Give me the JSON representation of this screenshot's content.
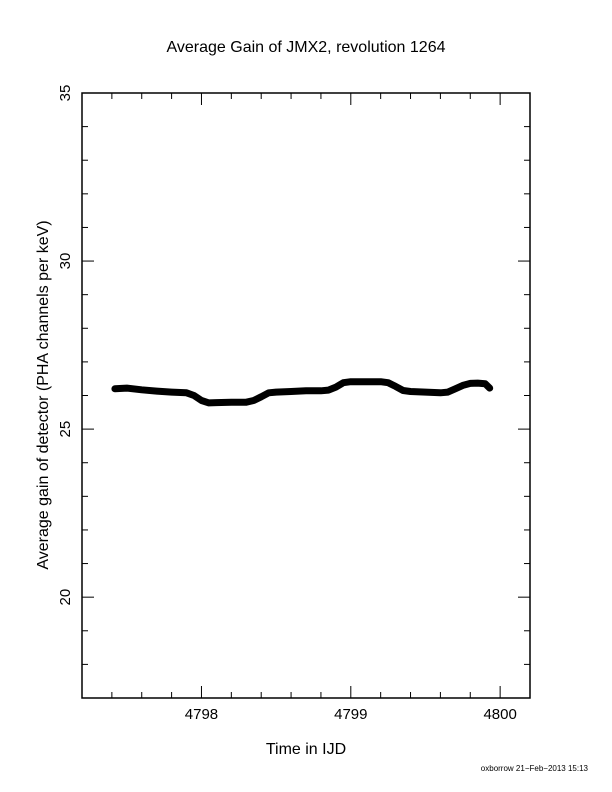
{
  "chart_data": {
    "type": "line",
    "title": "Average Gain of JMX2, revolution 1264",
    "xlabel": "Time in IJD",
    "ylabel": "Average gain of detector (PHA channels per keV)",
    "footer": "oxborrow 21−Feb−2013 15:13",
    "xlim": [
      4797.2,
      4800.2
    ],
    "ylim": [
      17,
      35
    ],
    "xticks": [
      4798,
      4799,
      4800
    ],
    "xtick_labels": [
      "4798",
      "4799",
      "4800"
    ],
    "yticks": [
      20,
      25,
      30,
      35
    ],
    "ytick_labels": [
      "20",
      "25",
      "30",
      "35"
    ],
    "grid": false,
    "series": [
      {
        "color": "#000000",
        "x": [
          4797.42,
          4797.5,
          4797.6,
          4797.7,
          4797.8,
          4797.9,
          4797.95,
          4798.0,
          4798.05,
          4798.1,
          4798.2,
          4798.3,
          4798.35,
          4798.4,
          4798.45,
          4798.5,
          4798.6,
          4798.7,
          4798.8,
          4798.85,
          4798.9,
          4798.95,
          4799.0,
          4799.1,
          4799.2,
          4799.25,
          4799.3,
          4799.35,
          4799.4,
          4799.5,
          4799.6,
          4799.65,
          4799.7,
          4799.75,
          4799.8,
          4799.85,
          4799.9,
          4799.93
        ],
        "y": [
          26.2,
          26.22,
          26.17,
          26.13,
          26.1,
          26.08,
          26.0,
          25.85,
          25.78,
          25.79,
          25.8,
          25.8,
          25.85,
          25.96,
          26.08,
          26.1,
          26.12,
          26.14,
          26.14,
          26.16,
          26.25,
          26.38,
          26.41,
          26.41,
          26.41,
          26.38,
          26.27,
          26.15,
          26.12,
          26.1,
          26.08,
          26.1,
          26.2,
          26.3,
          26.36,
          26.37,
          26.35,
          26.22
        ]
      }
    ]
  }
}
